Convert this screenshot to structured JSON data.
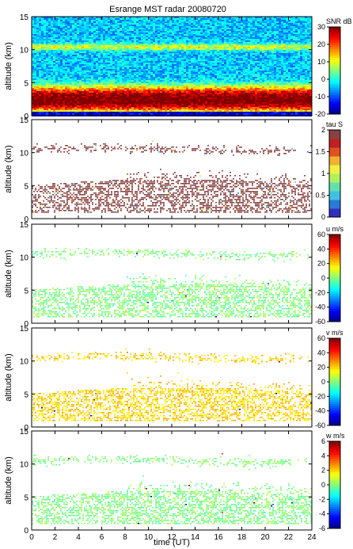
{
  "title": "Esrange MST radar 20080720",
  "x_axis": {
    "label": "time (UT)",
    "range": [
      0,
      24
    ],
    "ticks": [
      "0",
      "2",
      "4",
      "6",
      "8",
      "10",
      "12",
      "14",
      "16",
      "18",
      "20",
      "22",
      "24"
    ]
  },
  "chart_data": [
    {
      "type": "heatmap",
      "quantity": "SNR",
      "ylabel": "altitude (km)",
      "ylim": [
        0,
        15
      ],
      "y_ticks": [
        "0",
        "5",
        "10",
        "15"
      ],
      "colorbar": {
        "label": "SNR dB",
        "range": [
          -20,
          30
        ],
        "ticks": [
          "30",
          "20",
          "10",
          "0",
          "-10",
          "-20"
        ]
      },
      "layers": [
        {
          "center_km": 10.5,
          "approx_value": 10
        },
        {
          "center_km": 3.5,
          "approx_value": 22
        },
        {
          "center_km": 1.8,
          "approx_value": 25
        }
      ]
    },
    {
      "type": "heatmap",
      "quantity": "tau",
      "ylabel": "altitude (km)",
      "ylim": [
        0,
        15
      ],
      "y_ticks": [
        "0",
        "5",
        "10",
        "15"
      ],
      "colorbar": {
        "label": "tau S",
        "range": [
          0,
          2
        ],
        "ticks": [
          "2",
          "1.5",
          "1",
          "0.5",
          "0"
        ]
      },
      "dominant_value": 2
    },
    {
      "type": "heatmap",
      "quantity": "u",
      "ylabel": "altitude (km)",
      "ylim": [
        0,
        15
      ],
      "y_ticks": [
        "0",
        "5",
        "10",
        "15"
      ],
      "colorbar": {
        "label": "u m/s",
        "range": [
          -60,
          60
        ],
        "ticks": [
          "60",
          "40",
          "20",
          "0",
          "-20",
          "-40",
          "-60"
        ]
      },
      "dominant_value": 0
    },
    {
      "type": "heatmap",
      "quantity": "v",
      "ylabel": "altitude (km)",
      "ylim": [
        0,
        15
      ],
      "y_ticks": [
        "0",
        "5",
        "10",
        "15"
      ],
      "colorbar": {
        "label": "v m/s",
        "range": [
          -60,
          60
        ],
        "ticks": [
          "60",
          "40",
          "20",
          "0",
          "-20",
          "-40",
          "-60"
        ]
      },
      "dominant_value": 20
    },
    {
      "type": "heatmap",
      "quantity": "w",
      "ylabel": "altitude (km)",
      "ylim": [
        0,
        15
      ],
      "y_ticks": [
        "0",
        "5",
        "10",
        "15"
      ],
      "colorbar": {
        "label": "w m/s",
        "range": [
          -6,
          6
        ],
        "ticks": [
          "6",
          "4",
          "2",
          "0",
          "-2",
          "-4",
          "-6"
        ]
      },
      "dominant_value": 0
    }
  ]
}
